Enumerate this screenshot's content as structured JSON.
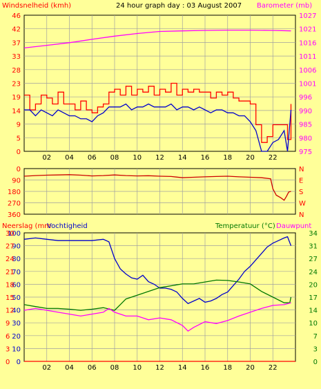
{
  "colors": {
    "background": "#ffff99",
    "panel": "#ffff99",
    "grid": "#a0a0a0",
    "wind_gust": "#ff0000",
    "wind_avg": "#0000cc",
    "barometer": "#ff00ff",
    "direction": "#cc0000",
    "rain": "#ff0000",
    "humidity": "#0000cc",
    "temperature": "#007700",
    "dewpoint": "#ff00ff"
  },
  "chart_data": [
    {
      "type": "line",
      "title": "24 hour graph day : 03 August 2007",
      "ylabel_left": "Windsnelheid (kmh)",
      "ylabel_right": "Barometer (mb)",
      "x_ticks": [
        "02",
        "04",
        "06",
        "08",
        "10",
        "12",
        "14",
        "16",
        "18",
        "20",
        "22"
      ],
      "xlim": [
        0,
        24
      ],
      "y_ticks_left": [
        "0",
        "5",
        "9",
        "14",
        "19",
        "23",
        "28",
        "33",
        "37",
        "42",
        "46"
      ],
      "y_ticks_right": [
        "975",
        "980",
        "985",
        "990",
        "996",
        "1001",
        "1006",
        "1011",
        "1016",
        "1021",
        "1027"
      ],
      "ylim_left": [
        0,
        46
      ],
      "ylim_right": [
        975,
        1027
      ],
      "grid": true,
      "series": [
        {
          "name": "Windsnelheid",
          "axis": "left",
          "values": [
            [
              0,
              14
            ],
            [
              0.5,
              14
            ],
            [
              1,
              12
            ],
            [
              1.5,
              14
            ],
            [
              2,
              13
            ],
            [
              2.5,
              12
            ],
            [
              3,
              14
            ],
            [
              3.5,
              13
            ],
            [
              4,
              12
            ],
            [
              4.5,
              12
            ],
            [
              5,
              11
            ],
            [
              5.5,
              11
            ],
            [
              6,
              10
            ],
            [
              6.5,
              12
            ],
            [
              7,
              13
            ],
            [
              7.5,
              15
            ],
            [
              8,
              15
            ],
            [
              8.5,
              15
            ],
            [
              9,
              16
            ],
            [
              9.5,
              14
            ],
            [
              10,
              15
            ],
            [
              10.5,
              15
            ],
            [
              11,
              16
            ],
            [
              11.5,
              15
            ],
            [
              12,
              15
            ],
            [
              12.5,
              15
            ],
            [
              13,
              16
            ],
            [
              13.5,
              14
            ],
            [
              14,
              15
            ],
            [
              14.5,
              15
            ],
            [
              15,
              14
            ],
            [
              15.5,
              15
            ],
            [
              16,
              14
            ],
            [
              16.5,
              13
            ],
            [
              17,
              14
            ],
            [
              17.5,
              14
            ],
            [
              18,
              13
            ],
            [
              18.5,
              13
            ],
            [
              19,
              12
            ],
            [
              19.5,
              12
            ],
            [
              20,
              10
            ],
            [
              20.5,
              7
            ],
            [
              21,
              0
            ],
            [
              21.5,
              0
            ],
            [
              22,
              3
            ],
            [
              22.5,
              4
            ],
            [
              23,
              7
            ],
            [
              23.3,
              0
            ],
            [
              23.6,
              14
            ]
          ]
        },
        {
          "name": "Windstoten",
          "axis": "left",
          "values": [
            [
              0,
              19
            ],
            [
              0.5,
              14
            ],
            [
              1,
              16
            ],
            [
              1.5,
              19
            ],
            [
              2,
              18
            ],
            [
              2.5,
              16
            ],
            [
              3,
              20
            ],
            [
              3.5,
              16
            ],
            [
              4,
              16
            ],
            [
              4.5,
              14
            ],
            [
              5,
              17
            ],
            [
              5.5,
              14
            ],
            [
              6,
              13
            ],
            [
              6.5,
              15
            ],
            [
              7,
              16
            ],
            [
              7.5,
              20
            ],
            [
              8,
              21
            ],
            [
              8.5,
              19
            ],
            [
              9,
              22
            ],
            [
              9.5,
              19
            ],
            [
              10,
              21
            ],
            [
              10.5,
              20
            ],
            [
              11,
              22
            ],
            [
              11.5,
              19
            ],
            [
              12,
              21
            ],
            [
              12.5,
              20
            ],
            [
              13,
              23
            ],
            [
              13.5,
              19
            ],
            [
              14,
              21
            ],
            [
              14.5,
              20
            ],
            [
              15,
              21
            ],
            [
              15.5,
              20
            ],
            [
              16,
              20
            ],
            [
              16.5,
              18
            ],
            [
              17,
              20
            ],
            [
              17.5,
              19
            ],
            [
              18,
              20
            ],
            [
              18.5,
              18
            ],
            [
              19,
              17
            ],
            [
              19.5,
              17
            ],
            [
              20,
              16
            ],
            [
              20.5,
              9
            ],
            [
              21,
              3
            ],
            [
              21.5,
              5
            ],
            [
              22,
              9
            ],
            [
              22.5,
              9
            ],
            [
              23,
              9
            ],
            [
              23.3,
              4
            ],
            [
              23.6,
              16
            ]
          ]
        },
        {
          "name": "Barometer",
          "axis": "right",
          "values": [
            [
              0,
              1014.5
            ],
            [
              2,
              1015.5
            ],
            [
              4,
              1016.5
            ],
            [
              6,
              1017.8
            ],
            [
              8,
              1019
            ],
            [
              10,
              1020
            ],
            [
              12,
              1020.8
            ],
            [
              14,
              1021
            ],
            [
              16,
              1021.2
            ],
            [
              18,
              1021.3
            ],
            [
              20,
              1021.3
            ],
            [
              22,
              1021.2
            ],
            [
              23.6,
              1021
            ]
          ]
        }
      ]
    },
    {
      "type": "line",
      "y_ticks_left": [
        "360",
        "270",
        "180",
        "90",
        "0"
      ],
      "y_ticks_right": [
        "N",
        "W",
        "S",
        "E",
        "N"
      ],
      "ylim": [
        0,
        360
      ],
      "xlim": [
        0,
        24
      ],
      "grid": true,
      "series": [
        {
          "name": "Windrichting",
          "values": [
            [
              0,
              300
            ],
            [
              1,
              305
            ],
            [
              2,
              308
            ],
            [
              3,
              310
            ],
            [
              4,
              312
            ],
            [
              5,
              308
            ],
            [
              6,
              302
            ],
            [
              7,
              305
            ],
            [
              8,
              310
            ],
            [
              9,
              305
            ],
            [
              10,
              302
            ],
            [
              11,
              304
            ],
            [
              12,
              300
            ],
            [
              13,
              298
            ],
            [
              14,
              288
            ],
            [
              15,
              292
            ],
            [
              16,
              295
            ],
            [
              17,
              298
            ],
            [
              18,
              300
            ],
            [
              19,
              295
            ],
            [
              20,
              292
            ],
            [
              21,
              288
            ],
            [
              21.8,
              280
            ],
            [
              22,
              200
            ],
            [
              22.3,
              150
            ],
            [
              22.7,
              130
            ],
            [
              23,
              110
            ],
            [
              23.2,
              140
            ],
            [
              23.4,
              175
            ],
            [
              23.6,
              180
            ]
          ]
        }
      ]
    },
    {
      "type": "line",
      "ylabel_left": "Neerslag (mm",
      "ylabel_left2": "Vochtigheid",
      "ylabel_right": "Temperatuur (°C)",
      "ylabel_right2": "Dauwpunt",
      "x_ticks": [
        "02",
        "04",
        "06",
        "08",
        "10",
        "12",
        "14",
        "16",
        "18",
        "20",
        "22"
      ],
      "xlim": [
        0,
        24
      ],
      "y_ticks_rain": [
        "0",
        "3",
        "6",
        "9",
        "12",
        "15",
        "18",
        "21",
        "24",
        "27",
        "30"
      ],
      "y_ticks_hum": [
        "0",
        "10",
        "20",
        "30",
        "40",
        "50",
        "60",
        "70",
        "80",
        "90",
        "100"
      ],
      "y_ticks_temp": [
        "0",
        "3",
        "7",
        "10",
        "14",
        "17",
        "20",
        "24",
        "27",
        "31",
        "34"
      ],
      "ylim_hum": [
        0,
        100
      ],
      "ylim_temp": [
        0,
        34
      ],
      "grid": true,
      "series": [
        {
          "name": "Vochtigheid",
          "axis": "hum",
          "values": [
            [
              0,
              95
            ],
            [
              1,
              96
            ],
            [
              2,
              95
            ],
            [
              3,
              94
            ],
            [
              4,
              94
            ],
            [
              5,
              94
            ],
            [
              6,
              94
            ],
            [
              7,
              95
            ],
            [
              7.5,
              93
            ],
            [
              8,
              80
            ],
            [
              8.5,
              72
            ],
            [
              9,
              68
            ],
            [
              9.5,
              65
            ],
            [
              10,
              64
            ],
            [
              10.5,
              67
            ],
            [
              11,
              62
            ],
            [
              11.5,
              60
            ],
            [
              12,
              57
            ],
            [
              12.5,
              57
            ],
            [
              13,
              56
            ],
            [
              13.5,
              54
            ],
            [
              14,
              49
            ],
            [
              14.5,
              45
            ],
            [
              15,
              47
            ],
            [
              15.5,
              49
            ],
            [
              16,
              46
            ],
            [
              16.5,
              47
            ],
            [
              17,
              49
            ],
            [
              17.5,
              52
            ],
            [
              18,
              54
            ],
            [
              18.5,
              59
            ],
            [
              19,
              64
            ],
            [
              19.5,
              70
            ],
            [
              20,
              74
            ],
            [
              20.5,
              79
            ],
            [
              21,
              84
            ],
            [
              21.5,
              89
            ],
            [
              22,
              92
            ],
            [
              22.5,
              94
            ],
            [
              23,
              96
            ],
            [
              23.3,
              97
            ],
            [
              23.6,
              90
            ]
          ]
        },
        {
          "name": "Temperatuur",
          "axis": "temp",
          "values": [
            [
              0,
              15
            ],
            [
              1,
              14.5
            ],
            [
              2,
              14
            ],
            [
              3,
              14
            ],
            [
              4,
              13.8
            ],
            [
              5,
              13.5
            ],
            [
              6,
              13.8
            ],
            [
              7,
              14.2
            ],
            [
              8,
              13.5
            ],
            [
              8.5,
              15
            ],
            [
              9,
              16.5
            ],
            [
              10,
              17.5
            ],
            [
              11,
              18.5
            ],
            [
              12,
              19.5
            ],
            [
              13,
              20
            ],
            [
              14,
              20.5
            ],
            [
              15,
              20.5
            ],
            [
              16,
              21
            ],
            [
              17,
              21.5
            ],
            [
              18,
              21.4
            ],
            [
              19,
              21
            ],
            [
              20,
              20.5
            ],
            [
              20.5,
              19.5
            ],
            [
              21,
              18.5
            ],
            [
              22,
              17
            ],
            [
              23,
              15.5
            ],
            [
              23.5,
              15.5
            ],
            [
              23.6,
              17
            ]
          ]
        },
        {
          "name": "Dauwpunt",
          "axis": "temp",
          "values": [
            [
              0,
              13.5
            ],
            [
              1,
              14
            ],
            [
              2,
              13.5
            ],
            [
              3,
              13
            ],
            [
              4,
              12.5
            ],
            [
              5,
              12
            ],
            [
              6,
              12.5
            ],
            [
              7,
              13
            ],
            [
              7.5,
              14
            ],
            [
              8,
              13
            ],
            [
              9,
              12
            ],
            [
              10,
              12
            ],
            [
              11,
              11
            ],
            [
              12,
              11.5
            ],
            [
              13,
              11
            ],
            [
              14,
              9.5
            ],
            [
              14.5,
              8
            ],
            [
              15,
              9
            ],
            [
              16,
              10.5
            ],
            [
              17,
              10
            ],
            [
              18,
              10.8
            ],
            [
              19,
              12
            ],
            [
              20,
              13
            ],
            [
              21,
              14
            ],
            [
              22,
              14.8
            ],
            [
              23,
              15
            ],
            [
              23.6,
              15.5
            ]
          ]
        },
        {
          "name": "Neerslag",
          "axis": "rain",
          "values": [
            [
              0,
              0
            ],
            [
              24,
              0
            ]
          ]
        }
      ]
    }
  ],
  "labels": {
    "top_title": "24 hour graph day : 03 August 2007",
    "top_left": "Windsnelheid (kmh)",
    "top_right": "Barometer (mb)",
    "bottom_rain": "Neerslag (mm",
    "bottom_hum": "Vochtigheid",
    "bottom_temp": "Temperatuur (°C)",
    "bottom_dew": "Dauwpunt"
  }
}
